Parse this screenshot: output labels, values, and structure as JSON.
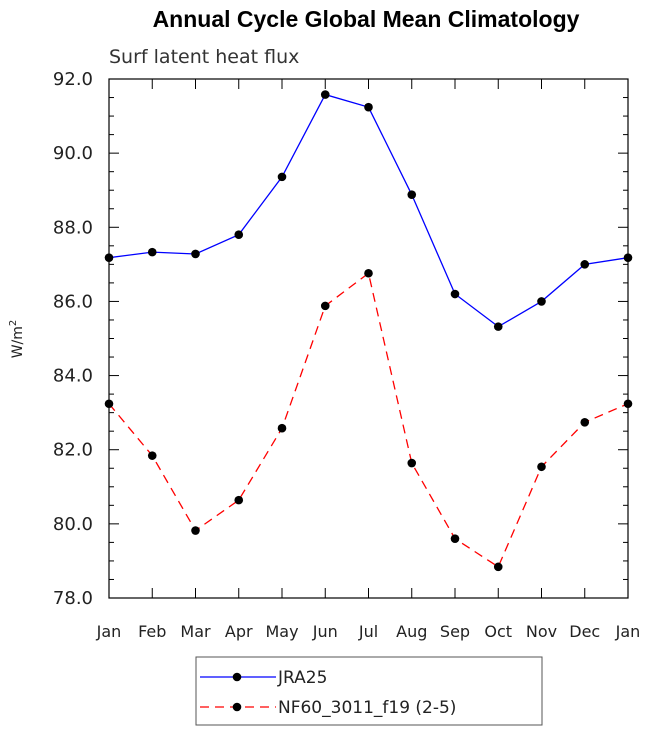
{
  "chart_data": {
    "type": "line",
    "title": "Annual Cycle Global Mean Climatology",
    "subtitle": "Surf latent heat flux",
    "ylabel": "W/m",
    "ylabel_sup": "2",
    "xlabel": "",
    "categories": [
      "Jan",
      "Feb",
      "Mar",
      "Apr",
      "May",
      "Jun",
      "Jul",
      "Aug",
      "Sep",
      "Oct",
      "Nov",
      "Dec",
      "Jan"
    ],
    "ylim": [
      78.0,
      92.0
    ],
    "yticks": [
      "78.0",
      "80.0",
      "82.0",
      "84.0",
      "86.0",
      "88.0",
      "90.0",
      "92.0"
    ],
    "grid": false,
    "legend_position": "bottom",
    "series": [
      {
        "name": "JRA25",
        "color": "#0000ff",
        "dash": "solid",
        "values": [
          87.18,
          87.33,
          87.28,
          87.8,
          89.36,
          91.58,
          91.24,
          88.88,
          86.2,
          85.32,
          86.0,
          87.0,
          87.18
        ]
      },
      {
        "name": "NF60_3011_f19 (2-5)",
        "color": "#ff0000",
        "dash": "dashed",
        "values": [
          83.24,
          81.84,
          79.82,
          80.64,
          82.58,
          85.88,
          86.76,
          81.64,
          79.6,
          78.84,
          81.54,
          82.74,
          83.24
        ]
      }
    ]
  }
}
